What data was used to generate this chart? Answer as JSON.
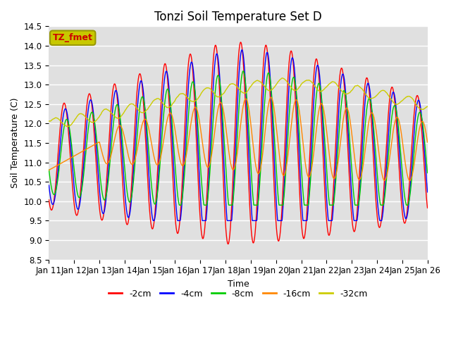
{
  "title": "Tonzi Soil Temperature Set D",
  "xlabel": "Time",
  "ylabel": "Soil Temperature (C)",
  "ylim": [
    8.5,
    14.5
  ],
  "xlim": [
    0,
    15
  ],
  "bg_color": "#e0e0e0",
  "grid_color": "#ffffff",
  "legend_label": "TZ_fmet",
  "legend_box_facecolor": "#c8c800",
  "legend_box_edgecolor": "#999900",
  "legend_text_color": "#cc0000",
  "series_colors": [
    "#ff0000",
    "#0000ff",
    "#00cc00",
    "#ff8800",
    "#cccc00"
  ],
  "series_labels": [
    "-2cm",
    "-4cm",
    "-8cm",
    "-16cm",
    "-32cm"
  ],
  "x_tick_labels": [
    "Jan 11",
    "Jan 12",
    "Jan 13",
    "Jan 14",
    "Jan 15",
    "Jan 16",
    "Jan 17",
    "Jan 18",
    "Jan 19",
    "Jan 20",
    "Jan 21",
    "Jan 22",
    "Jan 23",
    "Jan 24",
    "Jan 25",
    "Jan 26"
  ],
  "n_points": 1440,
  "title_fontsize": 12,
  "axis_fontsize": 9,
  "tick_fontsize": 8.5
}
